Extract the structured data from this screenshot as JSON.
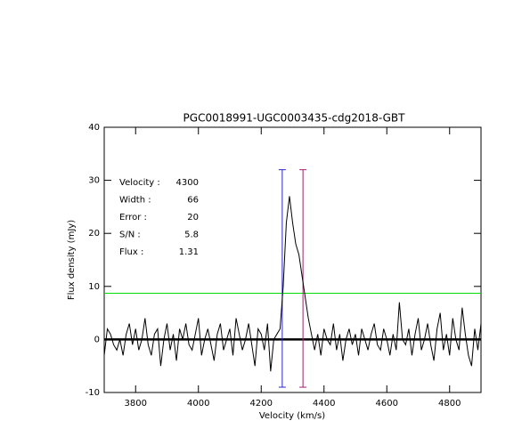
{
  "chart_data": {
    "type": "line",
    "title": "PGC0018991-UGC0003435-cdg2018-GBT",
    "xlabel": "Velocity (km/s)",
    "ylabel": "Flux density (mJy)",
    "xlim": [
      3700,
      4900
    ],
    "ylim": [
      -10,
      40
    ],
    "xticks": [
      3800,
      4000,
      4200,
      4400,
      4600,
      4800
    ],
    "yticks": [
      -10,
      0,
      10,
      20,
      30,
      40
    ],
    "zero_line": true,
    "hline": {
      "value": 8.7,
      "color": "#00e000"
    },
    "vlines": [
      {
        "value": 4267,
        "color": "#2828c8"
      },
      {
        "value": 4333,
        "color": "#a0206a"
      }
    ],
    "vline_range": [
      -9,
      32
    ],
    "annotations": [
      {
        "label": "Velocity :",
        "value": 4300
      },
      {
        "label": "Width :",
        "value": 66
      },
      {
        "label": "Error :",
        "value": 20
      },
      {
        "label": "S/N :",
        "value": 5.8
      },
      {
        "label": "Flux :",
        "value": 1.31
      }
    ],
    "annotation_color": "#2020b0",
    "series": [
      {
        "color": "#000000",
        "x": [
          3700,
          3710,
          3720,
          3730,
          3740,
          3750,
          3760,
          3770,
          3780,
          3790,
          3800,
          3810,
          3820,
          3830,
          3840,
          3850,
          3860,
          3870,
          3880,
          3890,
          3900,
          3910,
          3920,
          3930,
          3940,
          3950,
          3960,
          3970,
          3980,
          3990,
          4000,
          4010,
          4020,
          4030,
          4040,
          4050,
          4060,
          4070,
          4080,
          4090,
          4100,
          4110,
          4120,
          4130,
          4140,
          4150,
          4160,
          4170,
          4180,
          4190,
          4200,
          4210,
          4220,
          4230,
          4240,
          4250,
          4260,
          4270,
          4280,
          4290,
          4300,
          4310,
          4320,
          4330,
          4340,
          4350,
          4360,
          4370,
          4380,
          4390,
          4400,
          4410,
          4420,
          4430,
          4440,
          4450,
          4460,
          4470,
          4480,
          4490,
          4500,
          4510,
          4520,
          4530,
          4540,
          4550,
          4560,
          4570,
          4580,
          4590,
          4600,
          4610,
          4620,
          4630,
          4640,
          4650,
          4660,
          4670,
          4680,
          4690,
          4700,
          4710,
          4720,
          4730,
          4740,
          4750,
          4760,
          4770,
          4780,
          4790,
          4800,
          4810,
          4820,
          4830,
          4840,
          4850,
          4860,
          4870,
          4880,
          4890,
          4900
        ],
        "values": [
          -3,
          2,
          1,
          -1,
          -2,
          0,
          -3,
          1,
          3,
          -1,
          2,
          -2,
          0,
          4,
          -1,
          -3,
          1,
          2,
          -5,
          0,
          3,
          -2,
          1,
          -4,
          2,
          0,
          3,
          -1,
          -2,
          1,
          4,
          -3,
          0,
          2,
          -1,
          -4,
          1,
          3,
          -2,
          0,
          2,
          -3,
          4,
          1,
          -2,
          0,
          3,
          -1,
          -5,
          2,
          1,
          -2,
          3,
          -6,
          0,
          1,
          2,
          10,
          22,
          27,
          22,
          18,
          16,
          12,
          8,
          4,
          1,
          -2,
          1,
          -3,
          2,
          0,
          -1,
          3,
          -2,
          1,
          -4,
          0,
          2,
          -1,
          1,
          -3,
          2,
          0,
          -2,
          1,
          3,
          -1,
          -2,
          2,
          0,
          -3,
          1,
          -2,
          7,
          0,
          -1,
          2,
          -3,
          1,
          4,
          -2,
          0,
          3,
          -1,
          -4,
          2,
          5,
          -2,
          1,
          -3,
          4,
          0,
          -2,
          6,
          1,
          -3,
          -5,
          2,
          -2,
          3
        ]
      }
    ]
  }
}
